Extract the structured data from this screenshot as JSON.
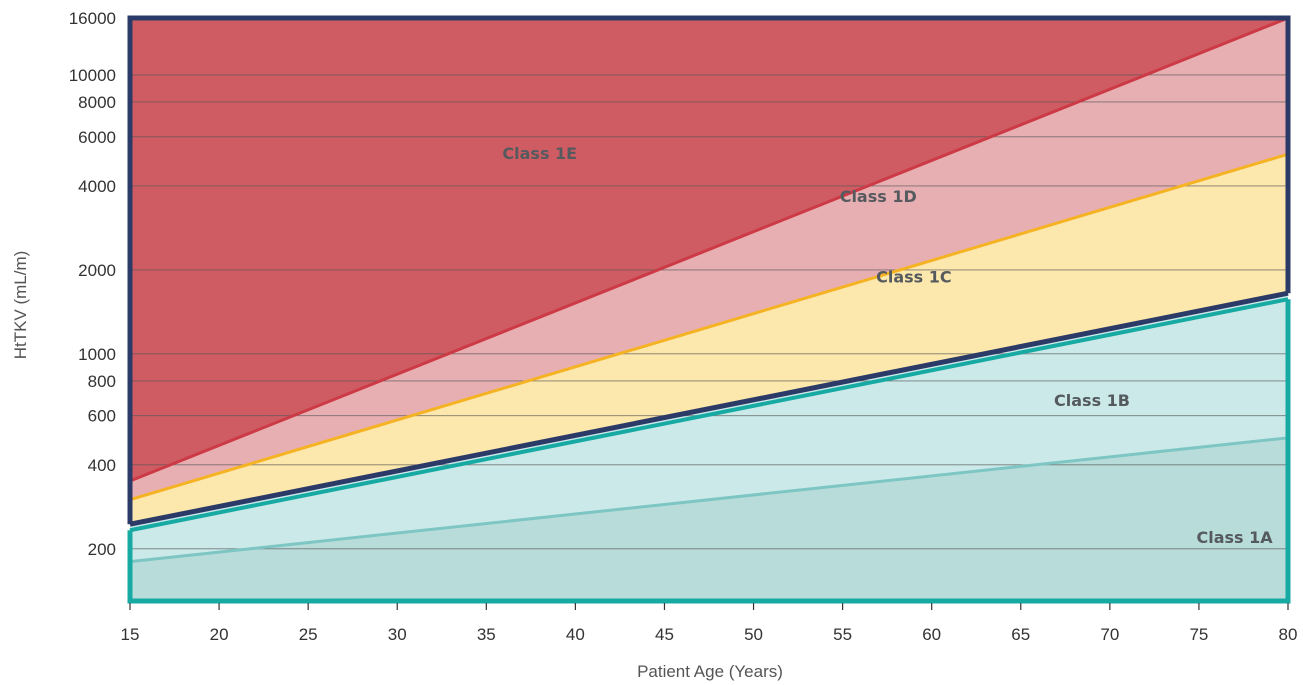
{
  "chart_data": {
    "type": "area",
    "title": "",
    "xlabel": "Patient Age (Years)",
    "ylabel": "HtTKV (mL/m)",
    "x_ticks": [
      15,
      20,
      25,
      30,
      35,
      40,
      45,
      50,
      55,
      60,
      65,
      70,
      75,
      80
    ],
    "y_ticks": [
      200,
      400,
      600,
      800,
      1000,
      2000,
      4000,
      6000,
      8000,
      10000,
      16000
    ],
    "y_scale": "log",
    "xlim": [
      15,
      80
    ],
    "ylim": [
      130,
      16000
    ],
    "grid": "horizontal",
    "boundaries": [
      {
        "name": "1A/1B",
        "x": [
          15,
          80
        ],
        "y": [
          180,
          500
        ],
        "color": "#7ec6c4"
      },
      {
        "name": "1B/1C",
        "x": [
          15,
          80
        ],
        "y": [
          245,
          1650
        ],
        "color": "#2b3a67"
      },
      {
        "name": "1C/1D",
        "x": [
          15,
          80
        ],
        "y": [
          300,
          5200
        ],
        "color": "#f5b324"
      },
      {
        "name": "1D/1E",
        "x": [
          15,
          80
        ],
        "y": [
          350,
          16000
        ],
        "color": "#cc3b45"
      }
    ],
    "regions": [
      {
        "label": "Class 1A",
        "color": "#b8dcda",
        "label_at": [
          77,
          210
        ]
      },
      {
        "label": "Class 1B",
        "color": "#cce9ea",
        "label_at": [
          69,
          650
        ]
      },
      {
        "label": "Class 1C",
        "color": "#fce7ac",
        "label_at": [
          59,
          1800
        ]
      },
      {
        "label": "Class 1D",
        "color": "#e8afb3",
        "label_at": [
          57,
          3500
        ]
      },
      {
        "label": "Class 1E",
        "color": "#cf5c63",
        "label_at": [
          38,
          5000
        ]
      }
    ]
  }
}
